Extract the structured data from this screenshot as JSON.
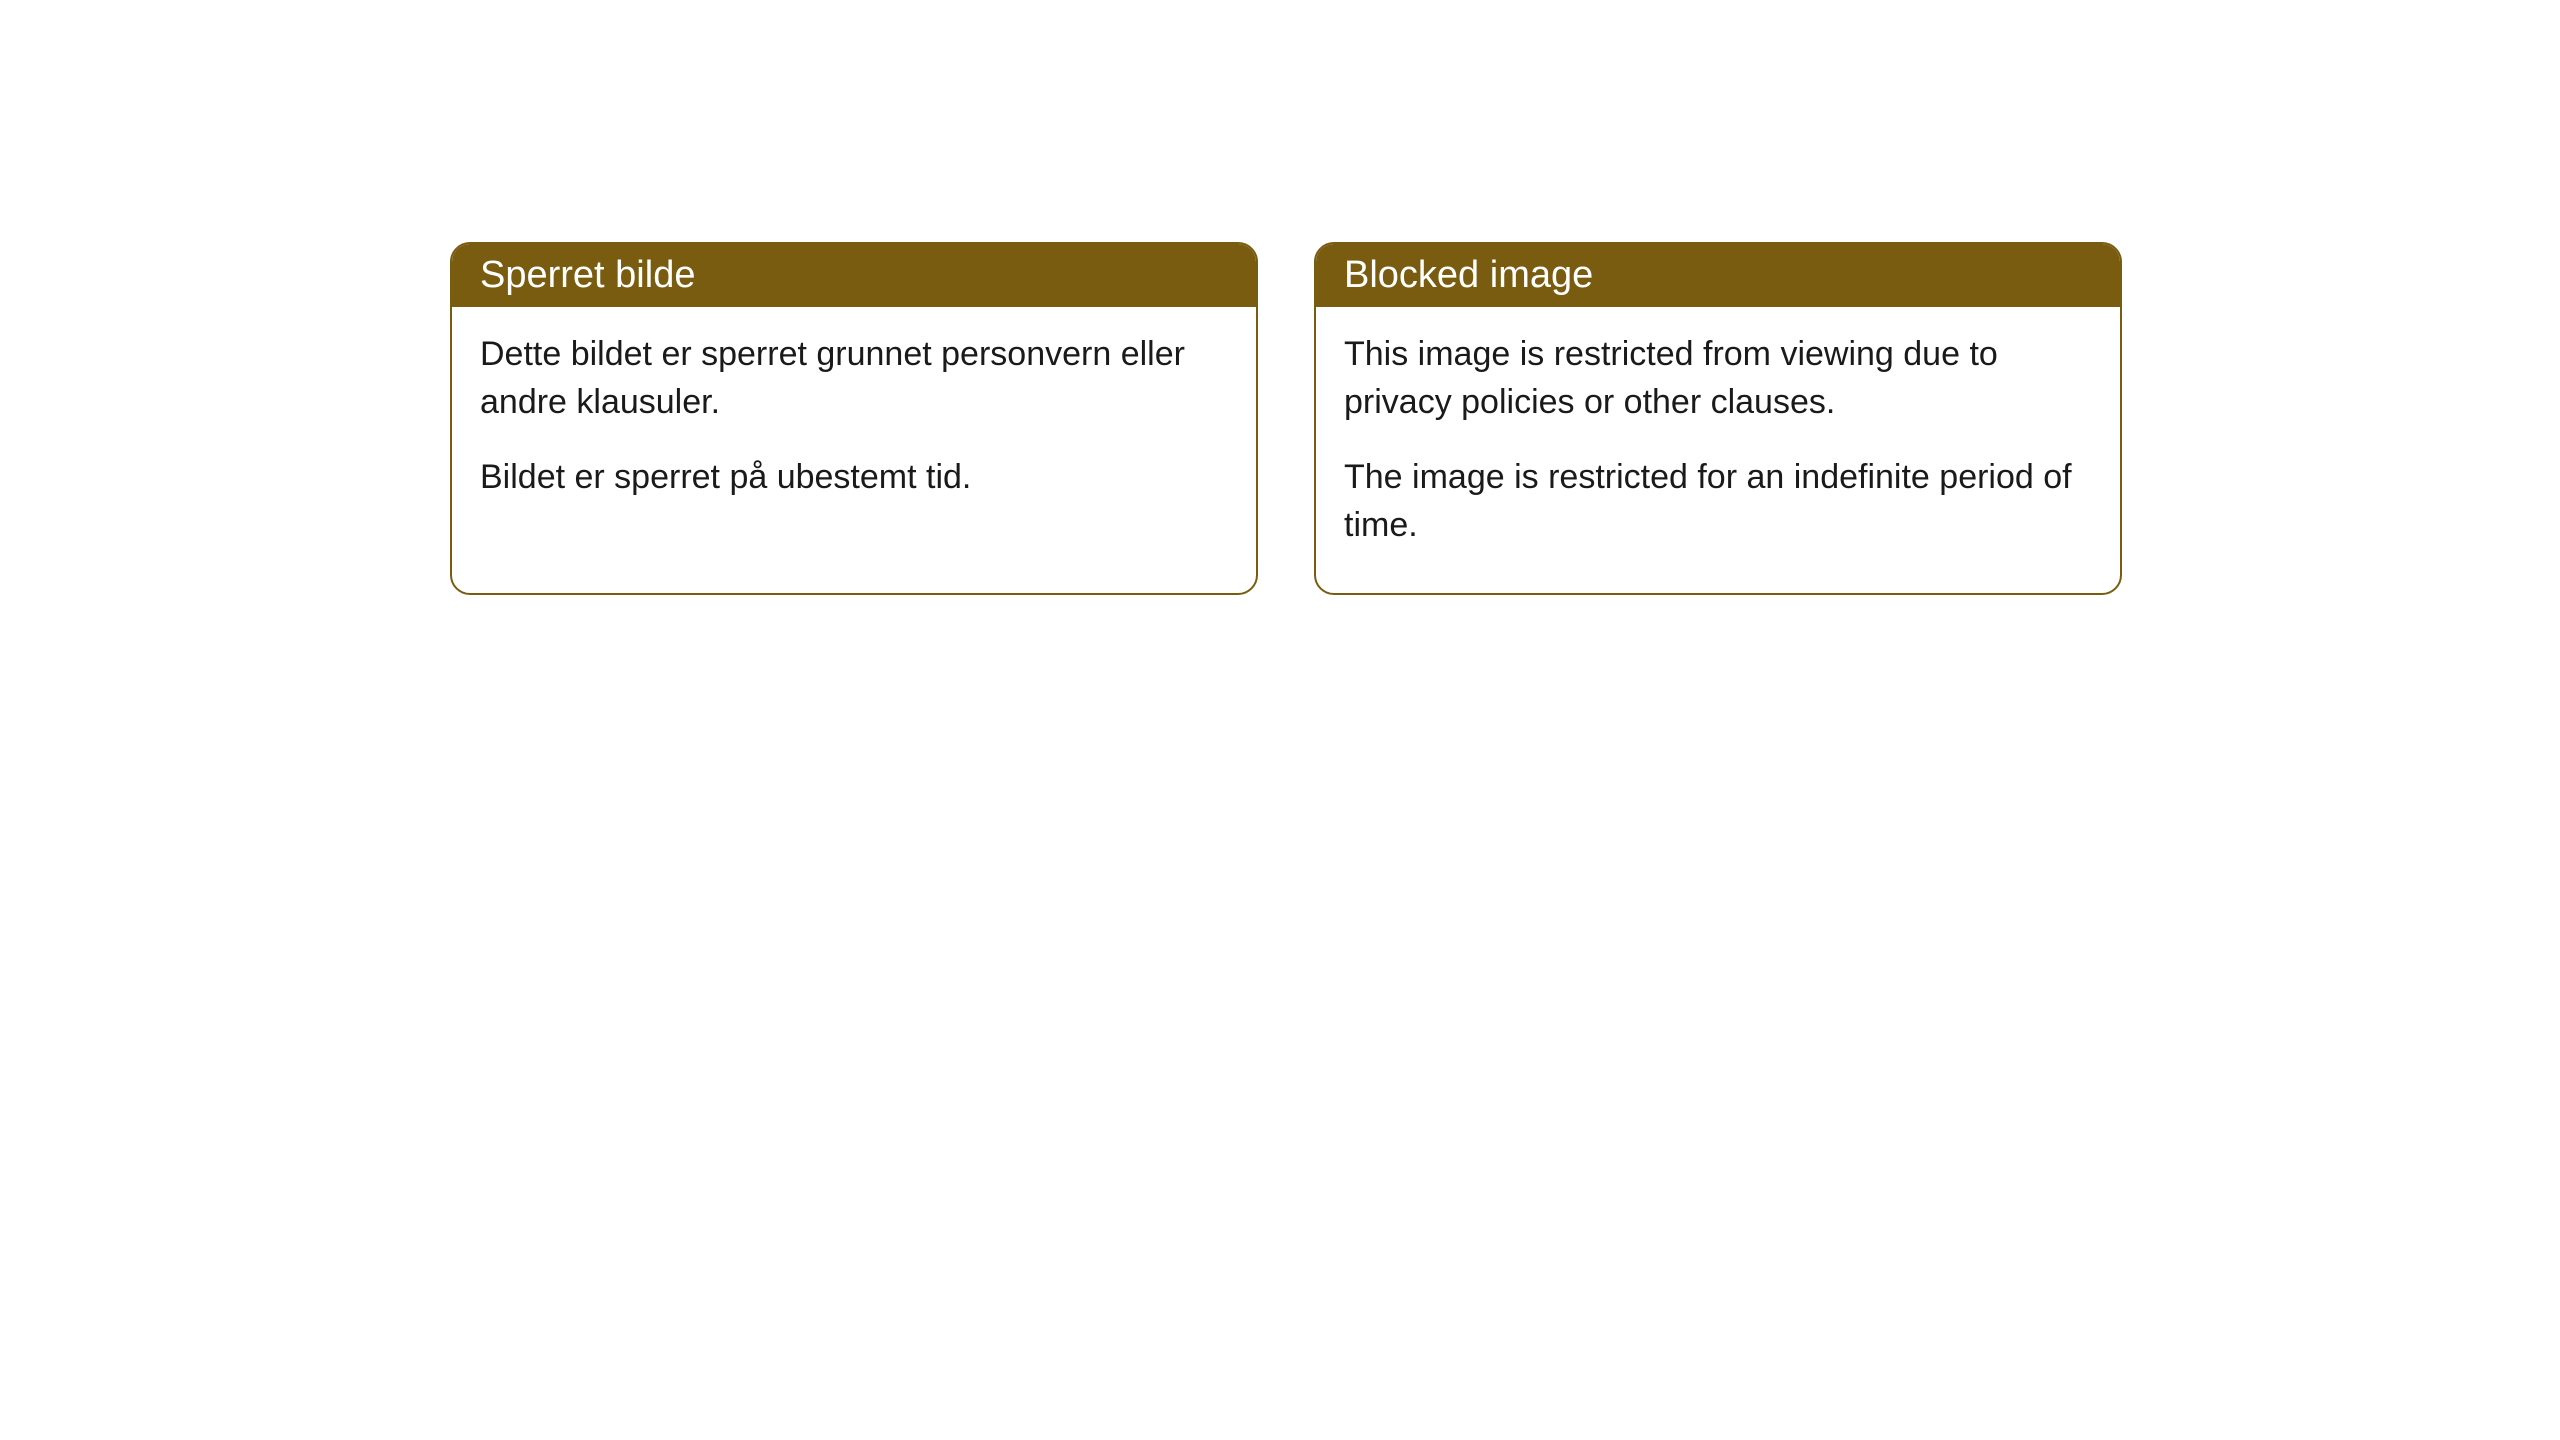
{
  "cards": [
    {
      "title": "Sperret bilde",
      "paragraph1": "Dette bildet er sperret grunnet personvern eller andre klausuler.",
      "paragraph2": "Bildet er sperret på ubestemt tid."
    },
    {
      "title": "Blocked image",
      "paragraph1": "This image is restricted from viewing due to privacy policies or other clauses.",
      "paragraph2": "The image is restricted for an indefinite period of time."
    }
  ],
  "style": {
    "header_background": "#7a5c11",
    "header_text_color": "#ffffff",
    "body_text_color": "#1a1a1a",
    "card_border_color": "#7a5c11",
    "card_background": "#ffffff",
    "page_background": "#ffffff",
    "border_radius": 20,
    "header_fontsize": 38,
    "body_fontsize": 34
  }
}
